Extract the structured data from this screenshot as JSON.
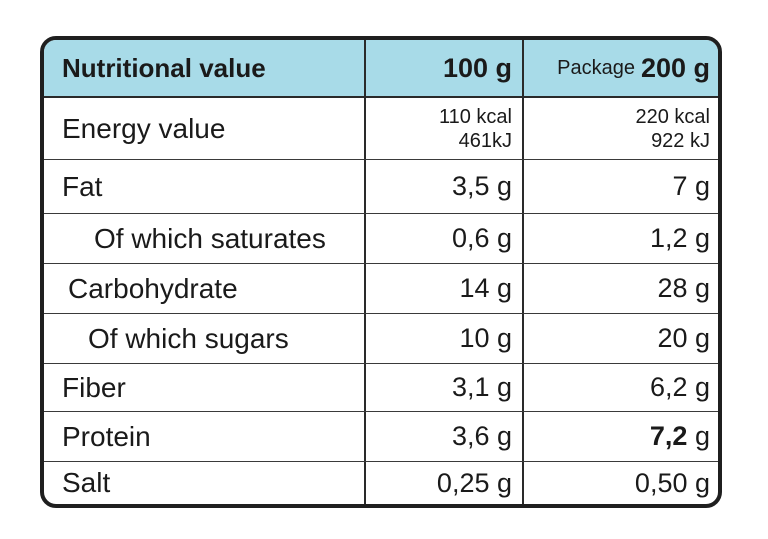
{
  "header": {
    "name_label": "Nutritional value",
    "per100_label": "100 g",
    "package_prefix": "Package",
    "package_weight": "200 g"
  },
  "rows": [
    {
      "name": "Energy value",
      "per100_line1": "110 kcal",
      "per100_line2": "461kJ",
      "pkg_line1": "220 kcal",
      "pkg_line2": "922 kJ"
    },
    {
      "name": "Fat",
      "per100": "3,5 g",
      "pkg": "7 g"
    },
    {
      "name": "Of which saturates",
      "per100": "0,6 g",
      "pkg": "1,2 g"
    },
    {
      "name": "Carbohydrate",
      "per100": "14 g",
      "pkg": "28 g"
    },
    {
      "name": "Of which sugars",
      "per100": "10 g",
      "pkg": "20 g"
    },
    {
      "name": "Fiber",
      "per100": "3,1 g",
      "pkg": "6,2 g"
    },
    {
      "name": "Protein",
      "per100": "3,6 g",
      "pkg_bold": "7,2",
      "pkg_unit": "g"
    },
    {
      "name": "Salt",
      "per100": "0,25 g",
      "pkg": "0,50 g"
    }
  ],
  "colors": {
    "header_background": "#a8dbe8",
    "border": "#1f1f1f"
  }
}
